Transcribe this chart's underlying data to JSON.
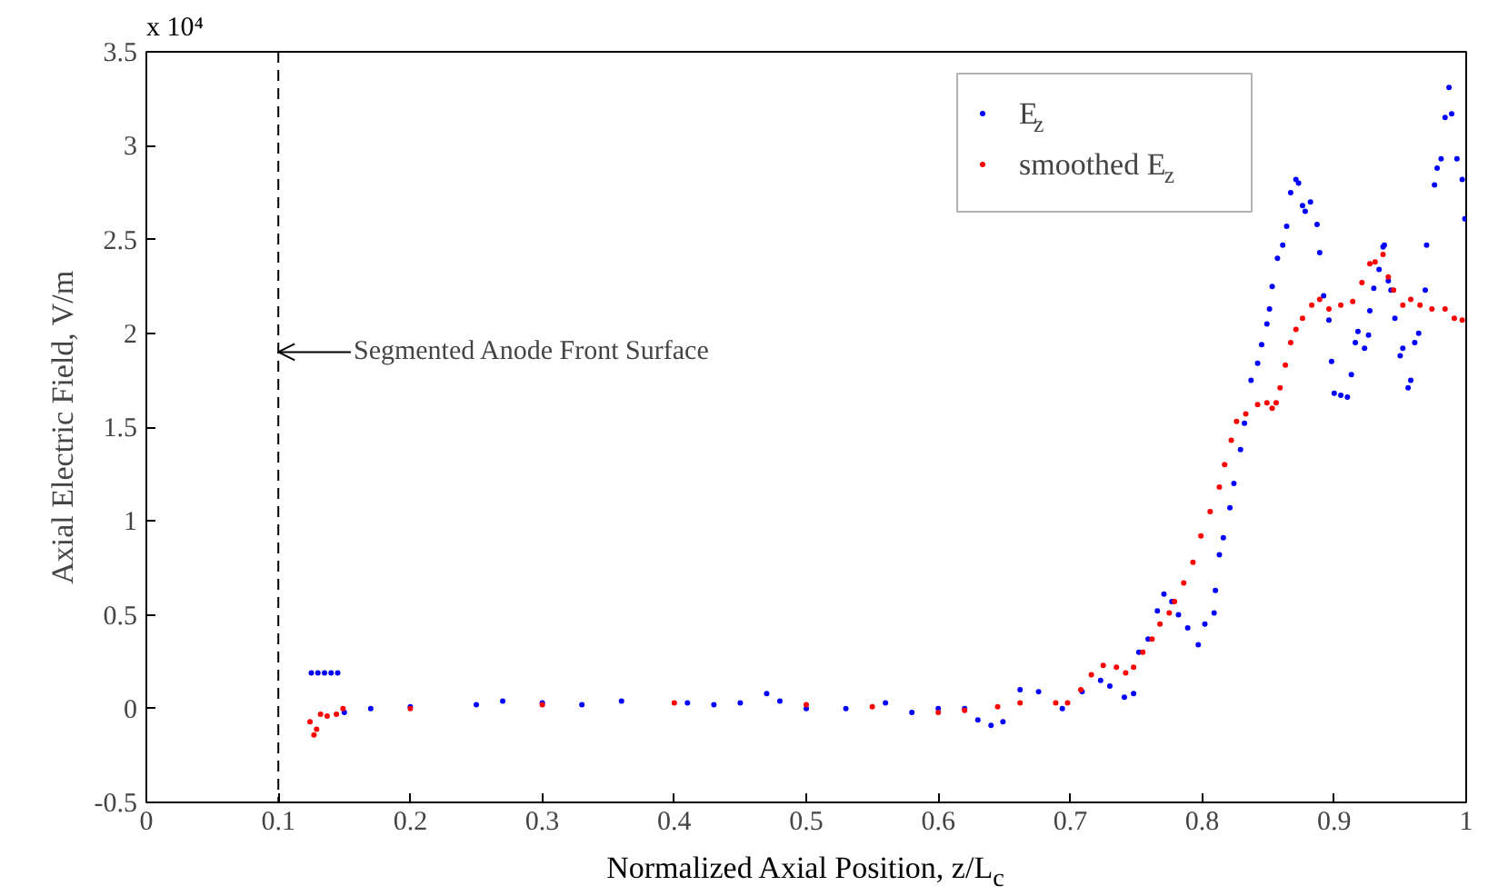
{
  "chart_data": {
    "type": "scatter",
    "xlabel": "Normalized Axial Position, z/L$_{c}$",
    "ylabel": "Axial Electric Field, V/m",
    "xlim": [
      0,
      1
    ],
    "ylim": [
      -0.5,
      3.5
    ],
    "xticks": [
      0,
      0.1,
      0.2,
      0.3,
      0.4,
      0.5,
      0.6,
      0.7,
      0.8,
      0.9,
      1
    ],
    "yticks": [
      -0.5,
      0,
      0.5,
      1,
      1.5,
      2,
      2.5,
      3,
      3.5
    ],
    "grid": false,
    "legend": "top right",
    "marker": "circle",
    "annotations": [
      "x 10⁴",
      {
        "text": "Segmented Anode Front Surface",
        "x": 0.1,
        "y": 1.9
      }
    ],
    "ref_lines": [
      {
        "axis": "x",
        "value": 0.1,
        "color": "#000000",
        "line_style": "dashed"
      }
    ],
    "series": [
      {
        "name": "E$_{z}$",
        "color": "#0000ff",
        "x": [
          0.125,
          0.13,
          0.135,
          0.14,
          0.145,
          0.15,
          0.17,
          0.2,
          0.25,
          0.27,
          0.3,
          0.33,
          0.36,
          0.41,
          0.43,
          0.45,
          0.47,
          0.48,
          0.5,
          0.53,
          0.56,
          0.58,
          0.6,
          0.62,
          0.63,
          0.64,
          0.649,
          0.662,
          0.676,
          0.694,
          0.709,
          0.723,
          0.73,
          0.741,
          0.748,
          0.752,
          0.759,
          0.766,
          0.771,
          0.777,
          0.782,
          0.789,
          0.797,
          0.802,
          0.809,
          0.81,
          0.813,
          0.816,
          0.821,
          0.824,
          0.829,
          0.832,
          0.837,
          0.842,
          0.845,
          0.849,
          0.851,
          0.853,
          0.857,
          0.861,
          0.864,
          0.867,
          0.871,
          0.873,
          0.876,
          0.878,
          0.882,
          0.887,
          0.889,
          0.892,
          0.896,
          0.898,
          0.9,
          0.905,
          0.91,
          0.913,
          0.916,
          0.918,
          0.923,
          0.926,
          0.927,
          0.93,
          0.934,
          0.937,
          0.938,
          0.941,
          0.943,
          0.946,
          0.95,
          0.952,
          0.956,
          0.958,
          0.961,
          0.964,
          0.969,
          0.97,
          0.976,
          0.978,
          0.981,
          0.984,
          0.987,
          0.989,
          0.993,
          0.997,
          0.999
        ],
        "values": [
          0.19,
          0.19,
          0.19,
          0.19,
          0.19,
          -0.02,
          0.0,
          0.01,
          0.02,
          0.04,
          0.03,
          0.02,
          0.04,
          0.03,
          0.02,
          0.03,
          0.08,
          0.04,
          0.0,
          0.0,
          0.03,
          -0.02,
          0.0,
          0.0,
          -0.06,
          -0.09,
          -0.07,
          0.1,
          0.09,
          0.0,
          0.09,
          0.15,
          0.12,
          0.06,
          0.08,
          0.3,
          0.37,
          0.52,
          0.61,
          0.57,
          0.5,
          0.43,
          0.34,
          0.45,
          0.51,
          0.63,
          0.82,
          0.91,
          1.07,
          1.2,
          1.38,
          1.52,
          1.75,
          1.84,
          1.94,
          2.05,
          2.13,
          2.25,
          2.4,
          2.47,
          2.57,
          2.75,
          2.82,
          2.8,
          2.68,
          2.65,
          2.7,
          2.58,
          2.43,
          2.2,
          2.07,
          1.85,
          1.68,
          1.67,
          1.66,
          1.78,
          1.95,
          2.01,
          1.92,
          1.99,
          2.12,
          2.24,
          2.34,
          2.46,
          2.47,
          2.28,
          2.23,
          2.08,
          1.88,
          1.92,
          1.71,
          1.75,
          1.95,
          2.0,
          2.23,
          2.47,
          2.79,
          2.88,
          2.93,
          3.15,
          3.31,
          3.17,
          2.93,
          2.82,
          2.61
        ]
      },
      {
        "name": "smoothed E$_{z}$",
        "color": "#ff0000",
        "x": [
          0.124,
          0.127,
          0.129,
          0.132,
          0.137,
          0.144,
          0.149,
          0.2,
          0.3,
          0.4,
          0.5,
          0.55,
          0.6,
          0.62,
          0.645,
          0.662,
          0.689,
          0.698,
          0.708,
          0.716,
          0.725,
          0.735,
          0.742,
          0.748,
          0.755,
          0.762,
          0.768,
          0.775,
          0.779,
          0.786,
          0.793,
          0.799,
          0.806,
          0.813,
          0.817,
          0.822,
          0.826,
          0.833,
          0.842,
          0.849,
          0.853,
          0.856,
          0.859,
          0.863,
          0.867,
          0.871,
          0.876,
          0.883,
          0.889,
          0.896,
          0.905,
          0.914,
          0.921,
          0.927,
          0.931,
          0.937,
          0.941,
          0.945,
          0.952,
          0.958,
          0.965,
          0.974,
          0.984,
          0.991,
          0.997
        ],
        "values": [
          -0.07,
          -0.14,
          -0.11,
          -0.03,
          -0.04,
          -0.03,
          0.0,
          0.0,
          0.02,
          0.03,
          0.02,
          0.01,
          -0.02,
          -0.01,
          0.01,
          0.03,
          0.03,
          0.03,
          0.1,
          0.18,
          0.23,
          0.22,
          0.19,
          0.22,
          0.3,
          0.37,
          0.45,
          0.51,
          0.57,
          0.67,
          0.78,
          0.92,
          1.05,
          1.18,
          1.3,
          1.43,
          1.53,
          1.57,
          1.62,
          1.63,
          1.6,
          1.63,
          1.71,
          1.83,
          1.95,
          2.02,
          2.08,
          2.15,
          2.18,
          2.13,
          2.15,
          2.17,
          2.27,
          2.37,
          2.38,
          2.42,
          2.3,
          2.23,
          2.15,
          2.18,
          2.15,
          2.13,
          2.13,
          2.08,
          2.07
        ]
      }
    ]
  }
}
